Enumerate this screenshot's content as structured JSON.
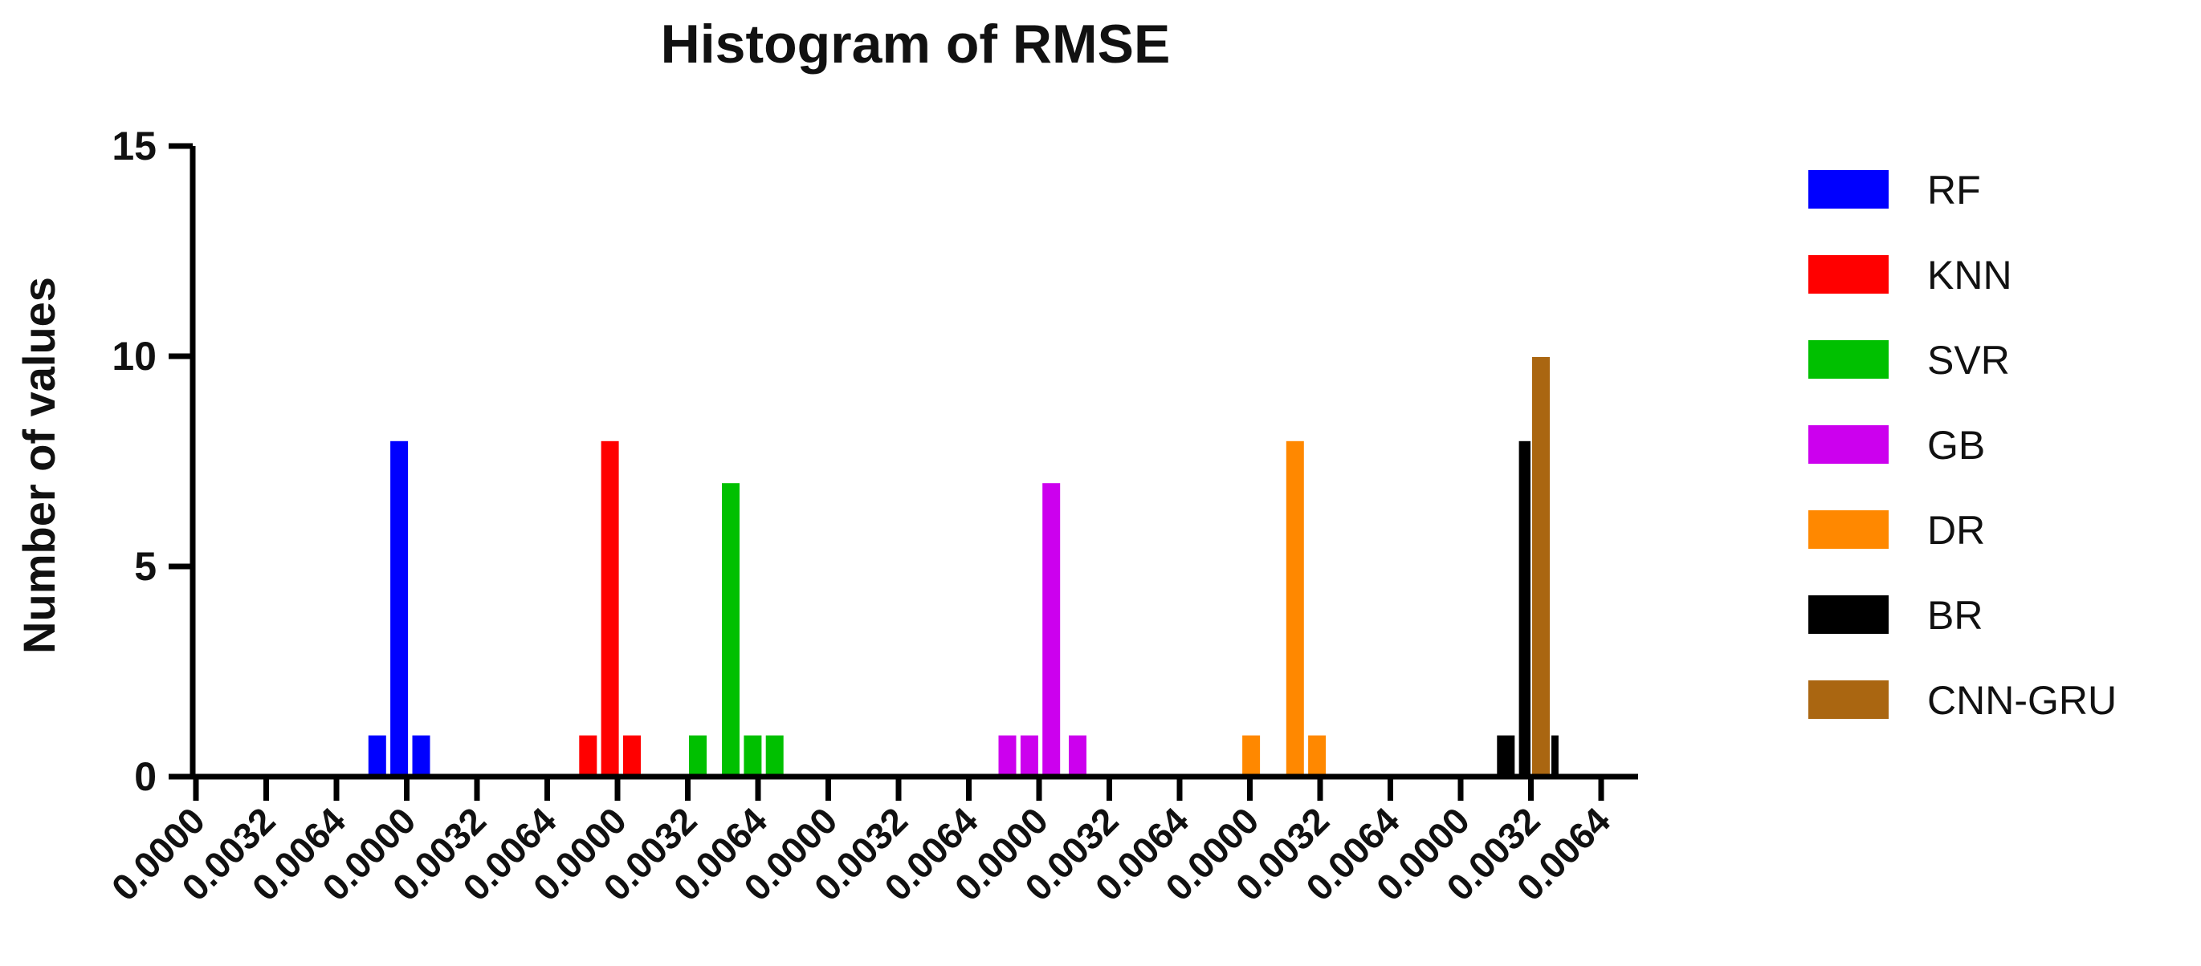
{
  "chart_data": {
    "type": "bar",
    "title": "Histogram of RMSE",
    "xlabel": "",
    "ylabel": "Number of values",
    "ylim": [
      0,
      15
    ],
    "yticks": [
      0,
      5,
      10,
      15
    ],
    "grid": false,
    "legend_position": "right",
    "x_tick_labels": [
      "0.0000",
      "0.0032",
      "0.0064",
      "0.0000",
      "0.0032",
      "0.0064",
      "0.0000",
      "0.0032",
      "0.0064",
      "0.0000",
      "0.0032",
      "0.0064",
      "0.0000",
      "0.0032",
      "0.0064",
      "0.0000",
      "0.0032",
      "0.0064",
      "0.0000",
      "0.0032",
      "0.0064"
    ],
    "series": [
      {
        "name": "RF",
        "color": "#0000ff",
        "bars": [
          {
            "x": 0.0046,
            "value": 1
          },
          {
            "x": 0.0056,
            "value": 8
          },
          {
            "x": 0.0066,
            "value": 1
          }
        ]
      },
      {
        "name": "KNN",
        "color": "#ff0000",
        "bars": [
          {
            "x": 0.0046,
            "value": 1
          },
          {
            "x": 0.0056,
            "value": 8
          },
          {
            "x": 0.0066,
            "value": 1
          }
        ]
      },
      {
        "name": "SVR",
        "color": "#00c000",
        "bars": [
          {
            "x": 0.0,
            "value": 1
          },
          {
            "x": 0.0015,
            "value": 7
          },
          {
            "x": 0.0025,
            "value": 1
          },
          {
            "x": 0.0035,
            "value": 1
          }
        ]
      },
      {
        "name": "GB",
        "color": "#cc00ee",
        "bars": [
          {
            "x": 0.0045,
            "value": 1
          },
          {
            "x": 0.0055,
            "value": 1
          },
          {
            "x": 0.0065,
            "value": 7
          },
          {
            "x": 0.0077,
            "value": 1
          }
        ]
      },
      {
        "name": "DR",
        "color": "#ff8800",
        "bars": [
          {
            "x": 0.006,
            "value": 1
          },
          {
            "x": 0.008,
            "value": 8
          },
          {
            "x": 0.009,
            "value": 1
          }
        ]
      },
      {
        "name": "BR",
        "color": "#000000",
        "bars": [
          {
            "x": 0.008,
            "value": 1
          },
          {
            "x": 0.009,
            "value": 8
          },
          {
            "x": 0.01,
            "value": 1
          }
        ]
      },
      {
        "name": "CNN-GRU",
        "color": "#aa6611",
        "bars": [
          {
            "x": 0.0,
            "value": 10
          }
        ]
      }
    ]
  }
}
